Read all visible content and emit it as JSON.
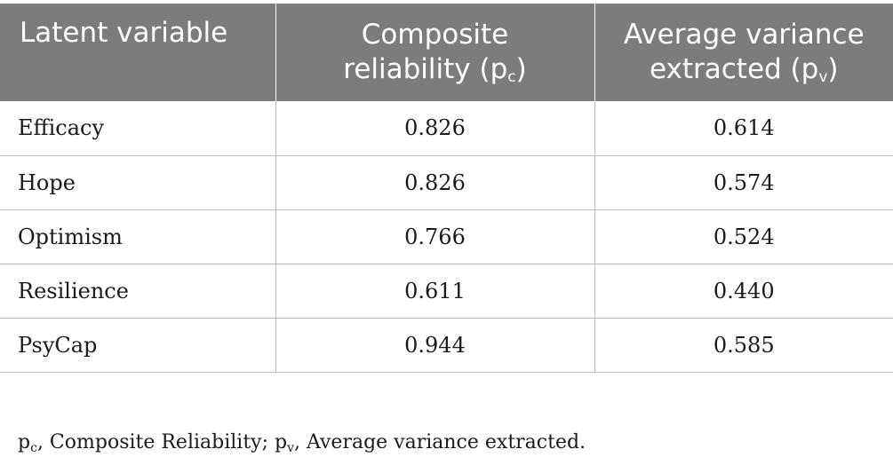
{
  "table": {
    "headers": {
      "col1": "Latent variable",
      "col2_line1": "Composite",
      "col2_line2": "reliability (p",
      "col2_sub": "c",
      "col2_close": ")",
      "col3_line1": "Average variance",
      "col3_line2": "extracted (p",
      "col3_sub": "v",
      "col3_close": ")"
    },
    "rows": [
      {
        "variable": "Efficacy",
        "cr": "0.826",
        "ave": "0.614"
      },
      {
        "variable": "Hope",
        "cr": "0.826",
        "ave": "0.574"
      },
      {
        "variable": "Optimism",
        "cr": "0.766",
        "ave": "0.524"
      },
      {
        "variable": "Resilience",
        "cr": "0.611",
        "ave": "0.440"
      },
      {
        "variable": "PsyCap",
        "cr": "0.944",
        "ave": "0.585"
      }
    ]
  },
  "footnote": {
    "p1": "p",
    "s1": "c",
    "t1": ", Composite Reliability; p",
    "s2": "v",
    "t2": ", Average variance extracted."
  }
}
